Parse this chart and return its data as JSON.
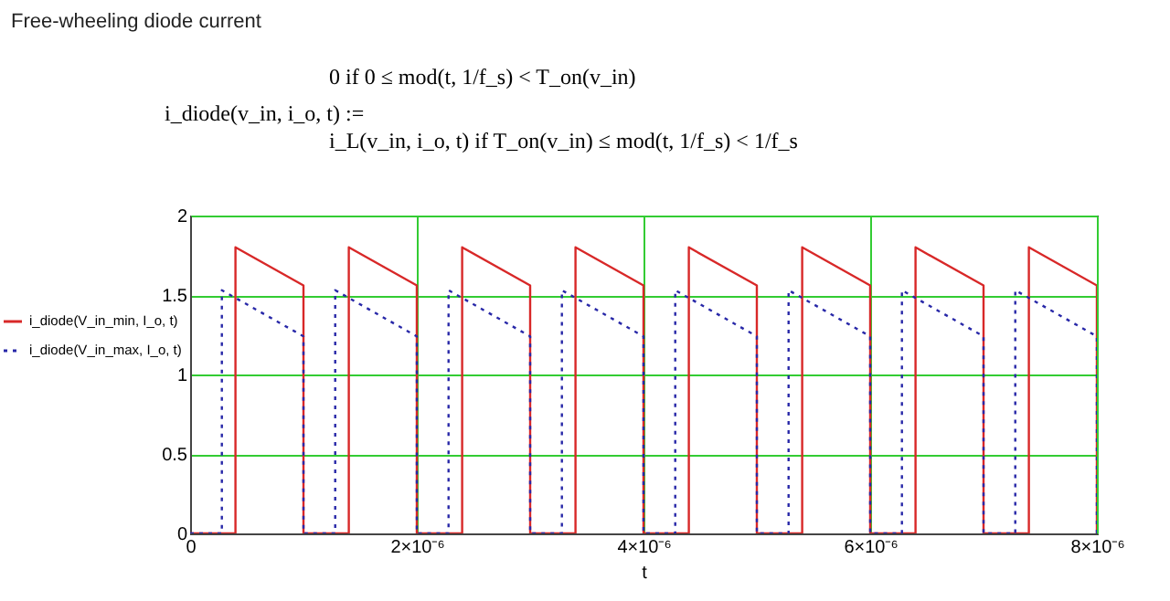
{
  "chart_data": {
    "type": "line",
    "title": "Free-wheeling diode current",
    "annotations": [
      "i_diode(v_in, i_o, t) :=",
      "0  if  0 ≤ mod(t, 1/f_s) < T_on(v_in)",
      "i_L(v_in, i_o, t)  if  T_on(v_in) ≤ mod(t, 1/f_s) < 1/f_s"
    ],
    "xlabel": "t",
    "series": [
      {
        "name": "i_diode(V_in_min, I_o, t)",
        "color": "#d82828",
        "line_style": "solid",
        "x": [
          0,
          4e-07,
          4e-07,
          1e-06,
          1e-06,
          1.4e-06,
          1.4e-06,
          2e-06,
          2e-06,
          2.4e-06,
          2.4e-06,
          3e-06,
          3e-06,
          3.4e-06,
          3.4e-06,
          4e-06,
          4e-06,
          4.4e-06,
          4.4e-06,
          5e-06,
          5e-06,
          5.4e-06,
          5.4e-06,
          6e-06,
          6e-06,
          6.4e-06,
          6.4e-06,
          7e-06,
          7e-06,
          7.4e-06,
          7.4e-06,
          8e-06,
          8e-06
        ],
        "values": [
          0,
          0,
          1.8,
          1.56,
          0,
          0,
          1.8,
          1.56,
          0,
          0,
          1.8,
          1.56,
          0,
          0,
          1.8,
          1.56,
          0,
          0,
          1.8,
          1.56,
          0,
          0,
          1.8,
          1.56,
          0,
          0,
          1.8,
          1.56,
          0,
          0,
          1.8,
          1.56,
          0
        ]
      },
      {
        "name": "i_diode(V_in_max, I_o, t)",
        "color": "#2828a8",
        "line_style": "dotted",
        "x": [
          0,
          2.8e-07,
          2.8e-07,
          1e-06,
          1e-06,
          1.28e-06,
          1.28e-06,
          2e-06,
          2e-06,
          2.28e-06,
          2.28e-06,
          3e-06,
          3e-06,
          3.28e-06,
          3.28e-06,
          4e-06,
          4e-06,
          4.28e-06,
          4.28e-06,
          5e-06,
          5e-06,
          5.28e-06,
          5.28e-06,
          6e-06,
          6e-06,
          6.28e-06,
          6.28e-06,
          7e-06,
          7e-06,
          7.28e-06,
          7.28e-06,
          8e-06,
          8e-06
        ],
        "values": [
          0,
          0,
          1.53,
          1.24,
          0,
          0,
          1.53,
          1.24,
          0,
          0,
          1.53,
          1.24,
          0,
          0,
          1.53,
          1.24,
          0,
          0,
          1.53,
          1.24,
          0,
          0,
          1.53,
          1.24,
          0,
          0,
          1.53,
          1.24,
          0,
          0,
          1.53,
          1.24,
          0
        ]
      }
    ],
    "xlim": [
      0,
      8e-06
    ],
    "xticks": [
      0,
      {
        "value": 2e-06,
        "label": "2×10⁻⁶"
      },
      {
        "value": 4e-06,
        "label": "4×10⁻⁶"
      },
      {
        "value": 6e-06,
        "label": "6×10⁻⁶"
      },
      {
        "value": 8e-06,
        "label": "8×10⁻⁶"
      }
    ],
    "ylim": [
      0,
      2
    ],
    "yticks": [
      0,
      0.5,
      1,
      1.5,
      2
    ],
    "grid": true,
    "legend": "left",
    "marker": "none"
  }
}
